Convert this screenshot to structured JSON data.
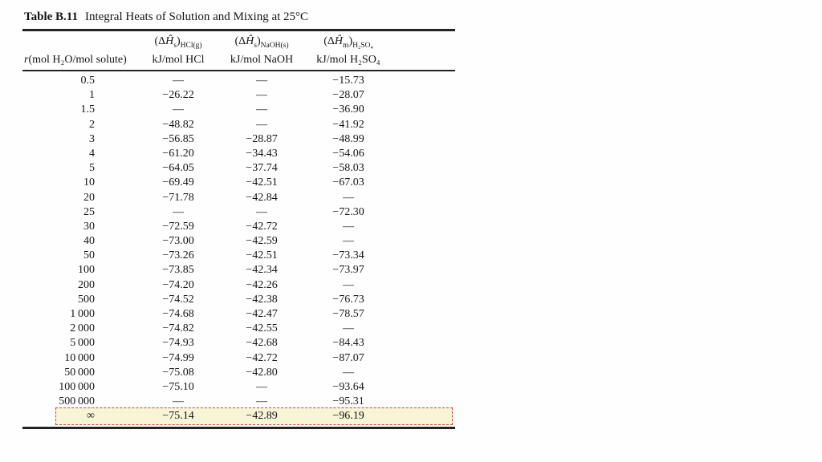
{
  "title": {
    "label": "Table B.11",
    "text": "Integral Heats of Solution and Mixing at 25°C"
  },
  "header": {
    "col_r": {
      "italic": "r",
      "rest": "(mol H₂O/mol solute)"
    },
    "col_hcl": {
      "sym_open": "(Δ",
      "sym_h": "Ĥ",
      "sym_sub": "s",
      "sym_close": ")",
      "sym_sub2": "HCl(g)",
      "units": "kJ/mol HCl"
    },
    "col_naoh": {
      "sym_open": "(Δ",
      "sym_h": "Ĥ",
      "sym_sub": "s",
      "sym_close": ")",
      "sym_sub2": "NaOH(s)",
      "units": "kJ/mol NaOH"
    },
    "col_h2so4": {
      "sym_open": "(Δ",
      "sym_h": "Ĥ",
      "sym_sub": "m",
      "sym_close": ")",
      "sym_sub2": "H₂SO₄",
      "units": "kJ/mol H₂SO₄"
    }
  },
  "table": {
    "rows": [
      {
        "r": "0.5",
        "hcl": "—",
        "naoh": "—",
        "h2so4": "−15.73"
      },
      {
        "r": "1",
        "hcl": "−26.22",
        "naoh": "—",
        "h2so4": "−28.07"
      },
      {
        "r": "1.5",
        "hcl": "—",
        "naoh": "—",
        "h2so4": "−36.90"
      },
      {
        "r": "2",
        "hcl": "−48.82",
        "naoh": "—",
        "h2so4": "−41.92"
      },
      {
        "r": "3",
        "hcl": "−56.85",
        "naoh": "−28.87",
        "h2so4": "−48.99"
      },
      {
        "r": "4",
        "hcl": "−61.20",
        "naoh": "−34.43",
        "h2so4": "−54.06"
      },
      {
        "r": "5",
        "hcl": "−64.05",
        "naoh": "−37.74",
        "h2so4": "−58.03"
      },
      {
        "r": "10",
        "hcl": "−69.49",
        "naoh": "−42.51",
        "h2so4": "−67.03"
      },
      {
        "r": "20",
        "hcl": "−71.78",
        "naoh": "−42.84",
        "h2so4": "—"
      },
      {
        "r": "25",
        "hcl": "—",
        "naoh": "—",
        "h2so4": "−72.30"
      },
      {
        "r": "30",
        "hcl": "−72.59",
        "naoh": "−42.72",
        "h2so4": "—"
      },
      {
        "r": "40",
        "hcl": "−73.00",
        "naoh": "−42.59",
        "h2so4": "—"
      },
      {
        "r": "50",
        "hcl": "−73.26",
        "naoh": "−42.51",
        "h2so4": "−73.34"
      },
      {
        "r": "100",
        "hcl": "−73.85",
        "naoh": "−42.34",
        "h2so4": "−73.97"
      },
      {
        "r": "200",
        "hcl": "−74.20",
        "naoh": "−42.26",
        "h2so4": "—"
      },
      {
        "r": "500",
        "hcl": "−74.52",
        "naoh": "−42.38",
        "h2so4": "−76.73"
      },
      {
        "r": "1 000",
        "hcl": "−74.68",
        "naoh": "−42.47",
        "h2so4": "−78.57"
      },
      {
        "r": "2 000",
        "hcl": "−74.82",
        "naoh": "−42.55",
        "h2so4": "—"
      },
      {
        "r": "5 000",
        "hcl": "−74.93",
        "naoh": "−42.68",
        "h2so4": "−84.43"
      },
      {
        "r": "10 000",
        "hcl": "−74.99",
        "naoh": "−42.72",
        "h2so4": "−87.07"
      },
      {
        "r": "50 000",
        "hcl": "−75.08",
        "naoh": "−42.80",
        "h2so4": "—"
      },
      {
        "r": "100 000",
        "hcl": "−75.10",
        "naoh": "—",
        "h2so4": "−93.64"
      },
      {
        "r": "500 000",
        "hcl": "—",
        "naoh": "—",
        "h2so4": "−95.31"
      },
      {
        "r": "∞",
        "hcl": "−75.14",
        "naoh": "−42.89",
        "h2so4": "−96.19",
        "highlight": true
      }
    ]
  },
  "colors": {
    "highlight_bg": "#f8f4d6",
    "highlight_border": "#cc4433",
    "rule": "#232323"
  }
}
